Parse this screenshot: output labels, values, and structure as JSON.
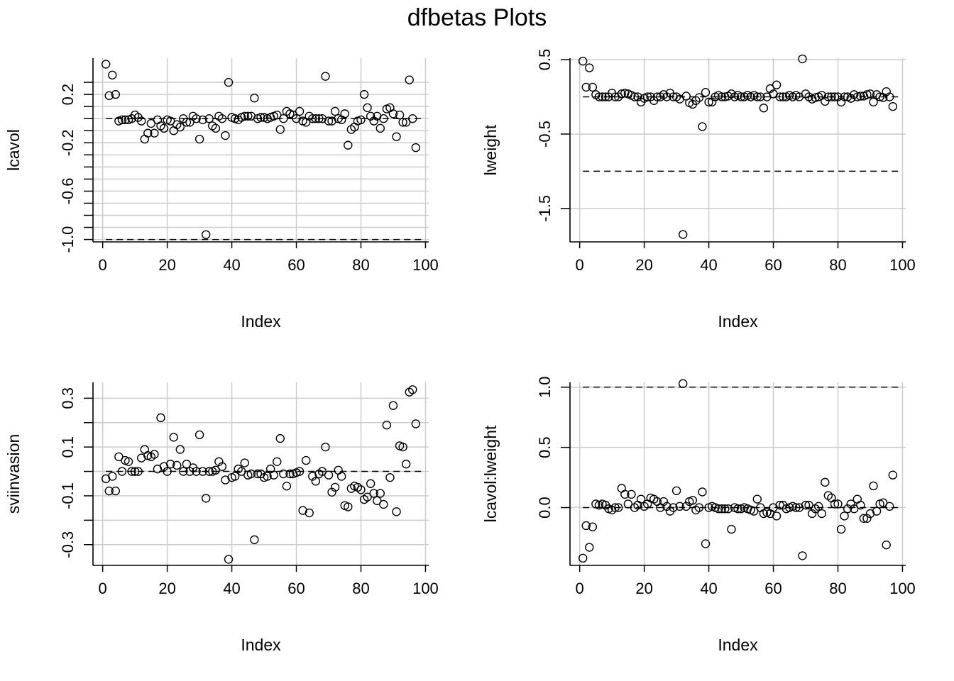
{
  "title": "dfbetas Plots",
  "colors": {
    "grid": "#cccccc",
    "ink": "#000000",
    "background": "#ffffff"
  },
  "chart_data": [
    {
      "type": "scatter",
      "title": "",
      "xlabel": "Index",
      "ylabel": "lcavol",
      "xlim": [
        -3,
        101
      ],
      "ylim": [
        -1.02,
        0.5
      ],
      "xticks": [
        0,
        20,
        40,
        60,
        80,
        100
      ],
      "yticks": [
        0.3,
        0.2,
        0.1,
        0.0,
        -0.1,
        -0.2,
        -0.3,
        -0.4,
        -0.5,
        -0.6,
        -0.7,
        -0.8,
        -0.9,
        -1.0
      ],
      "yticklabels": [
        "",
        "0.2",
        "",
        "",
        "",
        "-0.2",
        "",
        "",
        "",
        "-0.6",
        "",
        "",
        "",
        "-1.0"
      ],
      "grid": true,
      "reference_lines": [
        0,
        -1.0
      ],
      "x": [
        1,
        2,
        3,
        4,
        5,
        6,
        7,
        8,
        9,
        10,
        11,
        12,
        13,
        14,
        15,
        16,
        17,
        18,
        19,
        20,
        21,
        22,
        23,
        24,
        25,
        26,
        27,
        28,
        29,
        30,
        31,
        32,
        33,
        34,
        35,
        36,
        37,
        38,
        39,
        40,
        41,
        42,
        43,
        44,
        45,
        46,
        47,
        48,
        49,
        50,
        51,
        52,
        53,
        54,
        55,
        56,
        57,
        58,
        59,
        60,
        61,
        62,
        63,
        64,
        65,
        66,
        67,
        68,
        69,
        70,
        71,
        72,
        73,
        74,
        75,
        76,
        77,
        78,
        79,
        80,
        81,
        82,
        83,
        84,
        85,
        86,
        87,
        88,
        89,
        90,
        91,
        92,
        93,
        94,
        95,
        96,
        97
      ],
      "values": [
        0.45,
        0.19,
        0.36,
        0.2,
        -0.02,
        -0.01,
        -0.01,
        -0.01,
        0.0,
        0.03,
        0.01,
        -0.02,
        -0.17,
        -0.12,
        -0.04,
        -0.12,
        -0.01,
        -0.06,
        -0.08,
        -0.01,
        -0.02,
        -0.1,
        -0.05,
        -0.07,
        0.0,
        -0.03,
        -0.03,
        0.02,
        0.0,
        -0.17,
        -0.01,
        -0.96,
        0.0,
        -0.06,
        -0.08,
        0.02,
        0.0,
        -0.14,
        0.3,
        0.01,
        0.0,
        -0.01,
        0.01,
        0.02,
        0.02,
        0.02,
        0.17,
        0.0,
        0.01,
        0.01,
        0.0,
        0.01,
        0.02,
        0.03,
        -0.09,
        0.0,
        0.06,
        0.04,
        0.03,
        0.0,
        0.06,
        -0.02,
        -0.03,
        0.02,
        0.0,
        0.0,
        0.0,
        0.0,
        0.35,
        -0.02,
        -0.02,
        0.06,
        0.0,
        -0.01,
        0.04,
        -0.22,
        -0.09,
        -0.07,
        -0.02,
        -0.01,
        0.2,
        0.09,
        0.02,
        -0.02,
        0.02,
        -0.08,
        0.0,
        0.08,
        0.09,
        0.04,
        -0.15,
        0.03,
        -0.03,
        -0.03,
        0.32,
        0.0,
        -0.24
      ]
    },
    {
      "type": "scatter",
      "title": "",
      "xlabel": "Index",
      "ylabel": "lweight",
      "xlim": [
        -3,
        101
      ],
      "ylim": [
        -1.95,
        0.52
      ],
      "xticks": [
        0,
        20,
        40,
        60,
        80,
        100
      ],
      "yticks": [
        0.5,
        -0.5,
        -1.5
      ],
      "yticklabels": [
        "0.5",
        "-0.5",
        "-1.5"
      ],
      "grid": true,
      "reference_lines": [
        0,
        -1.0
      ],
      "x": [
        1,
        2,
        3,
        4,
        5,
        6,
        7,
        8,
        9,
        10,
        11,
        12,
        13,
        14,
        15,
        16,
        17,
        18,
        19,
        20,
        21,
        22,
        23,
        24,
        25,
        26,
        27,
        28,
        29,
        30,
        31,
        32,
        33,
        34,
        35,
        36,
        37,
        38,
        39,
        40,
        41,
        42,
        43,
        44,
        45,
        46,
        47,
        48,
        49,
        50,
        51,
        52,
        53,
        54,
        55,
        56,
        57,
        58,
        59,
        60,
        61,
        62,
        63,
        64,
        65,
        66,
        67,
        68,
        69,
        70,
        71,
        72,
        73,
        74,
        75,
        76,
        77,
        78,
        79,
        80,
        81,
        82,
        83,
        84,
        85,
        86,
        87,
        88,
        89,
        90,
        91,
        92,
        93,
        94,
        95,
        96,
        97
      ],
      "values": [
        0.48,
        0.13,
        0.39,
        0.13,
        0.03,
        0.0,
        0.0,
        0.0,
        0.0,
        0.05,
        0.0,
        0.0,
        0.04,
        0.05,
        0.04,
        0.02,
        0.0,
        0.0,
        -0.07,
        -0.02,
        0.0,
        0.0,
        -0.05,
        0.0,
        0.0,
        0.03,
        0.0,
        0.05,
        0.0,
        0.0,
        -0.03,
        -1.85,
        0.01,
        -0.08,
        -0.1,
        -0.05,
        -0.01,
        -0.4,
        0.06,
        -0.07,
        -0.07,
        0.0,
        0.02,
        0.0,
        0.0,
        0.01,
        0.04,
        0.0,
        0.02,
        0.0,
        0.0,
        0.02,
        0.0,
        0.02,
        0.0,
        0.0,
        -0.15,
        0.0,
        0.11,
        0.04,
        0.16,
        0.0,
        0.0,
        0.0,
        0.02,
        0.0,
        0.02,
        0.0,
        0.51,
        0.04,
        0.0,
        -0.03,
        -0.01,
        0.0,
        0.02,
        -0.06,
        0.0,
        0.0,
        0.0,
        0.0,
        -0.07,
        0.0,
        0.0,
        -0.02,
        0.03,
        0.0,
        0.01,
        0.01,
        0.03,
        0.04,
        -0.07,
        0.03,
        0.0,
        -0.01,
        0.07,
        0.0,
        -0.13
      ]
    },
    {
      "type": "scatter",
      "title": "",
      "xlabel": "Index",
      "ylabel": "sviinvasion",
      "xlim": [
        -3,
        101
      ],
      "ylim": [
        -0.385,
        0.365
      ],
      "xticks": [
        0,
        20,
        40,
        60,
        80,
        100
      ],
      "yticks": [
        0.3,
        0.2,
        0.1,
        0.0,
        -0.1,
        -0.2,
        -0.3
      ],
      "yticklabels": [
        "0.3",
        "",
        "0.1",
        "",
        "-0.1",
        "",
        "-0.3"
      ],
      "grid": true,
      "reference_lines": [
        0
      ],
      "x": [
        1,
        2,
        3,
        4,
        5,
        6,
        7,
        8,
        9,
        10,
        11,
        12,
        13,
        14,
        15,
        16,
        17,
        18,
        19,
        20,
        21,
        22,
        23,
        24,
        25,
        26,
        27,
        28,
        29,
        30,
        31,
        32,
        33,
        34,
        35,
        36,
        37,
        38,
        39,
        40,
        41,
        42,
        43,
        44,
        45,
        46,
        47,
        48,
        49,
        50,
        51,
        52,
        53,
        54,
        55,
        56,
        57,
        58,
        59,
        60,
        61,
        62,
        63,
        64,
        65,
        66,
        67,
        68,
        69,
        70,
        71,
        72,
        73,
        74,
        75,
        76,
        77,
        78,
        79,
        80,
        81,
        82,
        83,
        84,
        85,
        86,
        87,
        88,
        89,
        90,
        91,
        92,
        93,
        94,
        95,
        96,
        97
      ],
      "values": [
        -0.03,
        -0.08,
        -0.02,
        -0.08,
        0.06,
        0.0,
        0.045,
        0.04,
        0.0,
        0.0,
        0.0,
        0.055,
        0.09,
        0.065,
        0.06,
        0.07,
        0.01,
        0.22,
        0.02,
        0.0,
        0.03,
        0.14,
        0.025,
        0.09,
        0.0,
        0.03,
        0.0,
        0.015,
        0.0,
        0.15,
        0.0,
        -0.11,
        0.0,
        0.0,
        0.005,
        0.04,
        0.02,
        -0.035,
        -0.36,
        -0.025,
        -0.02,
        0.01,
        0.0,
        0.035,
        -0.015,
        -0.01,
        -0.28,
        -0.01,
        -0.01,
        -0.025,
        -0.02,
        0.01,
        -0.015,
        0.04,
        0.135,
        -0.01,
        -0.06,
        -0.01,
        -0.01,
        -0.005,
        0.0,
        -0.16,
        0.045,
        -0.17,
        -0.02,
        -0.04,
        -0.01,
        0.0,
        0.1,
        -0.015,
        -0.085,
        -0.065,
        0.005,
        -0.02,
        -0.14,
        -0.145,
        -0.07,
        -0.06,
        -0.065,
        -0.075,
        -0.115,
        -0.105,
        -0.05,
        -0.09,
        -0.12,
        -0.09,
        -0.135,
        0.19,
        -0.025,
        0.27,
        -0.165,
        0.105,
        0.1,
        0.03,
        0.325,
        0.335,
        0.195
      ]
    },
    {
      "type": "scatter",
      "title": "",
      "xlabel": "Index",
      "ylabel": "lcavol:lweight",
      "xlim": [
        -3,
        101
      ],
      "ylim": [
        -0.48,
        1.04
      ],
      "xticks": [
        0,
        20,
        40,
        60,
        80,
        100
      ],
      "yticks": [
        1.0,
        0.5,
        0.0
      ],
      "yticklabels": [
        "1.0",
        "0.5",
        "0.0"
      ],
      "grid": true,
      "reference_lines": [
        0,
        1.0
      ],
      "x": [
        1,
        2,
        3,
        4,
        5,
        6,
        7,
        8,
        9,
        10,
        11,
        12,
        13,
        14,
        15,
        16,
        17,
        18,
        19,
        20,
        21,
        22,
        23,
        24,
        25,
        26,
        27,
        28,
        29,
        30,
        31,
        32,
        33,
        34,
        35,
        36,
        37,
        38,
        39,
        40,
        41,
        42,
        43,
        44,
        45,
        46,
        47,
        48,
        49,
        50,
        51,
        52,
        53,
        54,
        55,
        56,
        57,
        58,
        59,
        60,
        61,
        62,
        63,
        64,
        65,
        66,
        67,
        68,
        69,
        70,
        71,
        72,
        73,
        74,
        75,
        76,
        77,
        78,
        79,
        80,
        81,
        82,
        83,
        84,
        85,
        86,
        87,
        88,
        89,
        90,
        91,
        92,
        93,
        94,
        95,
        96,
        97
      ],
      "values": [
        -0.42,
        -0.15,
        -0.33,
        -0.16,
        0.03,
        0.02,
        0.03,
        0.02,
        -0.01,
        -0.02,
        0.0,
        0.0,
        0.16,
        0.11,
        0.03,
        0.11,
        0.0,
        0.02,
        0.07,
        0.01,
        0.03,
        0.08,
        0.07,
        0.05,
        0.0,
        0.05,
        0.01,
        -0.03,
        0.0,
        0.14,
        0.01,
        1.03,
        0.01,
        0.05,
        0.06,
        -0.02,
        0.0,
        0.13,
        -0.3,
        0.0,
        0.01,
        0.0,
        -0.01,
        -0.01,
        -0.01,
        -0.01,
        -0.18,
        0.0,
        -0.01,
        -0.01,
        0.0,
        -0.01,
        -0.02,
        -0.03,
        0.07,
        0.0,
        -0.05,
        -0.04,
        -0.05,
        0.0,
        -0.07,
        0.02,
        0.02,
        -0.01,
        0.0,
        0.01,
        0.0,
        0.0,
        -0.4,
        0.02,
        0.02,
        -0.05,
        -0.01,
        0.01,
        -0.05,
        0.21,
        0.1,
        0.08,
        0.03,
        0.03,
        -0.18,
        -0.07,
        -0.01,
        0.03,
        -0.01,
        0.07,
        0.02,
        -0.09,
        -0.09,
        -0.05,
        0.18,
        -0.03,
        0.03,
        0.04,
        -0.31,
        0.01,
        0.27
      ]
    }
  ]
}
